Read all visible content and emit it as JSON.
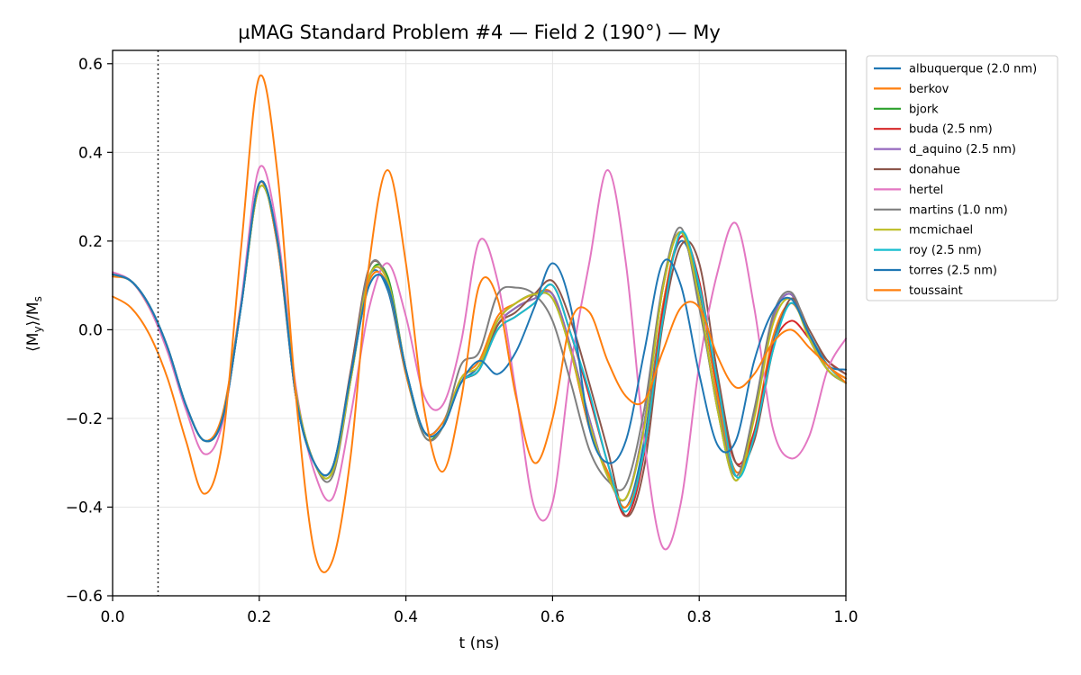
{
  "chart_data": {
    "type": "line",
    "title": "µMAG Standard Problem #4 — Field 2 (190°) — My",
    "xlabel": "t (ns)",
    "ylabel": "⟨M",
    "ylabel_sub": "y",
    "ylabel_tail": "⟩/M",
    "ylabel_sub2": "s",
    "xlim": [
      0.0,
      1.0
    ],
    "ylim": [
      -0.6,
      0.63
    ],
    "xticks": [
      0.0,
      0.2,
      0.4,
      0.6,
      0.8,
      1.0
    ],
    "xtick_labels": [
      "0.0",
      "0.2",
      "0.4",
      "0.6",
      "0.8",
      "1.0"
    ],
    "yticks": [
      -0.6,
      -0.4,
      -0.2,
      0.0,
      0.2,
      0.4,
      0.6
    ],
    "ytick_labels": [
      "−0.6",
      "−0.4",
      "−0.2",
      "0.0",
      "0.2",
      "0.4",
      "0.6"
    ],
    "grid": true,
    "legend_position": "outside-top-right",
    "vline_x": 0.062,
    "x": [
      0.0,
      0.025,
      0.05,
      0.075,
      0.1,
      0.125,
      0.15,
      0.175,
      0.2,
      0.225,
      0.25,
      0.275,
      0.3,
      0.325,
      0.35,
      0.375,
      0.4,
      0.425,
      0.45,
      0.475,
      0.5,
      0.525,
      0.55,
      0.575,
      0.6,
      0.625,
      0.65,
      0.675,
      0.7,
      0.725,
      0.75,
      0.775,
      0.8,
      0.825,
      0.85,
      0.875,
      0.9,
      0.925,
      0.95,
      0.975,
      1.0
    ],
    "series": [
      {
        "name": "albuquerque (2.0 nm)",
        "color": "#1f77b4",
        "values": [
          0.125,
          0.11,
          0.055,
          -0.04,
          -0.17,
          -0.25,
          -0.2,
          0.05,
          0.33,
          0.19,
          -0.15,
          -0.3,
          -0.31,
          -0.1,
          0.12,
          0.09,
          -0.1,
          -0.23,
          -0.21,
          -0.12,
          -0.08,
          0.02,
          0.06,
          0.08,
          0.07,
          -0.05,
          -0.22,
          -0.32,
          -0.4,
          -0.25,
          0.05,
          0.2,
          0.09,
          -0.15,
          -0.32,
          -0.24,
          -0.03,
          0.06,
          -0.01,
          -0.08,
          -0.11
        ]
      },
      {
        "name": "berkov",
        "color": "#ff7f0e",
        "values": [
          0.12,
          0.11,
          0.05,
          -0.045,
          -0.17,
          -0.25,
          -0.19,
          0.06,
          0.33,
          0.19,
          -0.15,
          -0.3,
          -0.31,
          -0.1,
          0.11,
          0.1,
          -0.1,
          -0.23,
          -0.21,
          -0.11,
          -0.07,
          0.03,
          0.06,
          0.08,
          0.08,
          -0.05,
          -0.22,
          -0.32,
          -0.4,
          -0.27,
          0.05,
          0.21,
          0.1,
          -0.15,
          -0.32,
          -0.23,
          -0.02,
          0.06,
          -0.01,
          -0.08,
          -0.11
        ]
      },
      {
        "name": "bjork",
        "color": "#2ca02c",
        "values": [
          0.125,
          0.11,
          0.055,
          -0.04,
          -0.17,
          -0.25,
          -0.2,
          0.05,
          0.32,
          0.2,
          -0.14,
          -0.3,
          -0.32,
          -0.11,
          0.12,
          0.12,
          -0.09,
          -0.24,
          -0.22,
          -0.12,
          -0.09,
          0.01,
          0.05,
          0.07,
          0.08,
          -0.04,
          -0.2,
          -0.33,
          -0.38,
          -0.21,
          0.09,
          0.22,
          0.06,
          -0.18,
          -0.34,
          -0.19,
          0.02,
          0.08,
          -0.02,
          -0.09,
          -0.12
        ]
      },
      {
        "name": "buda (2.5 nm)",
        "color": "#d62728",
        "values": [
          0.125,
          0.11,
          0.055,
          -0.04,
          -0.17,
          -0.25,
          -0.2,
          0.05,
          0.33,
          0.2,
          -0.15,
          -0.3,
          -0.31,
          -0.1,
          0.12,
          0.11,
          -0.09,
          -0.23,
          -0.22,
          -0.12,
          -0.09,
          0.0,
          0.03,
          0.06,
          0.1,
          -0.01,
          -0.15,
          -0.3,
          -0.42,
          -0.28,
          0.04,
          0.21,
          0.11,
          -0.13,
          -0.3,
          -0.23,
          -0.04,
          0.02,
          -0.02,
          -0.07,
          -0.1
        ]
      },
      {
        "name": "d_aquino (2.5 nm)",
        "color": "#9467bd",
        "values": [
          0.125,
          0.11,
          0.055,
          -0.04,
          -0.17,
          -0.25,
          -0.2,
          0.05,
          0.33,
          0.2,
          -0.15,
          -0.3,
          -0.31,
          -0.1,
          0.12,
          0.11,
          -0.09,
          -0.23,
          -0.22,
          -0.12,
          -0.09,
          0.01,
          0.05,
          0.07,
          0.08,
          -0.04,
          -0.2,
          -0.33,
          -0.38,
          -0.21,
          0.09,
          0.22,
          0.06,
          -0.18,
          -0.34,
          -0.19,
          0.02,
          0.08,
          -0.02,
          -0.09,
          -0.12
        ]
      },
      {
        "name": "donahue",
        "color": "#8c564b",
        "values": [
          0.125,
          0.11,
          0.055,
          -0.04,
          -0.17,
          -0.25,
          -0.2,
          0.05,
          0.33,
          0.2,
          -0.15,
          -0.3,
          -0.31,
          -0.09,
          0.14,
          0.11,
          -0.09,
          -0.23,
          -0.22,
          -0.12,
          -0.09,
          0.01,
          0.04,
          0.08,
          0.11,
          0.02,
          -0.12,
          -0.27,
          -0.42,
          -0.31,
          0.01,
          0.19,
          0.15,
          -0.1,
          -0.3,
          -0.25,
          -0.05,
          0.07,
          0.0,
          -0.07,
          -0.1
        ]
      },
      {
        "name": "hertel",
        "color": "#e377c2",
        "values": [
          0.13,
          0.11,
          0.05,
          -0.05,
          -0.18,
          -0.28,
          -0.21,
          0.06,
          0.365,
          0.22,
          -0.13,
          -0.32,
          -0.38,
          -0.19,
          0.05,
          0.15,
          0.03,
          -0.15,
          -0.17,
          -0.03,
          0.2,
          0.11,
          -0.14,
          -0.4,
          -0.39,
          -0.08,
          0.15,
          0.36,
          0.15,
          -0.25,
          -0.49,
          -0.39,
          -0.08,
          0.13,
          0.24,
          0.05,
          -0.22,
          -0.29,
          -0.24,
          -0.09,
          -0.02
        ]
      },
      {
        "name": "martins (1.0 nm)",
        "color": "#7f7f7f",
        "values": [
          0.125,
          0.11,
          0.055,
          -0.04,
          -0.17,
          -0.25,
          -0.2,
          0.05,
          0.32,
          0.2,
          -0.14,
          -0.3,
          -0.33,
          -0.11,
          0.14,
          0.11,
          -0.09,
          -0.24,
          -0.22,
          -0.08,
          -0.05,
          0.08,
          0.095,
          0.08,
          0.02,
          -0.12,
          -0.27,
          -0.34,
          -0.35,
          -0.18,
          0.1,
          0.23,
          0.05,
          -0.17,
          -0.33,
          -0.18,
          0.03,
          0.085,
          -0.01,
          -0.09,
          -0.12
        ]
      },
      {
        "name": "mcmichael",
        "color": "#bcbd22",
        "values": [
          0.125,
          0.11,
          0.055,
          -0.04,
          -0.17,
          -0.25,
          -0.2,
          0.05,
          0.32,
          0.2,
          -0.14,
          -0.3,
          -0.32,
          -0.11,
          0.12,
          0.11,
          -0.09,
          -0.23,
          -0.22,
          -0.11,
          -0.08,
          0.02,
          0.06,
          0.08,
          0.07,
          -0.05,
          -0.21,
          -0.33,
          -0.38,
          -0.22,
          0.09,
          0.22,
          0.07,
          -0.18,
          -0.34,
          -0.2,
          0.01,
          0.07,
          -0.02,
          -0.09,
          -0.12
        ]
      },
      {
        "name": "roy (2.5 nm)",
        "color": "#17becf",
        "values": [
          0.125,
          0.11,
          0.055,
          -0.04,
          -0.17,
          -0.25,
          -0.2,
          0.05,
          0.33,
          0.2,
          -0.15,
          -0.3,
          -0.31,
          -0.1,
          0.1,
          0.1,
          -0.09,
          -0.23,
          -0.22,
          -0.12,
          -0.09,
          0.0,
          0.03,
          0.06,
          0.1,
          -0.01,
          -0.14,
          -0.3,
          -0.41,
          -0.27,
          0.02,
          0.22,
          0.1,
          -0.12,
          -0.33,
          -0.24,
          -0.05,
          0.06,
          -0.01,
          -0.08,
          -0.12
        ]
      },
      {
        "name": "torres (2.5 nm)",
        "color": "#1f77b4",
        "values": [
          0.125,
          0.11,
          0.055,
          -0.04,
          -0.17,
          -0.25,
          -0.2,
          0.05,
          0.33,
          0.2,
          -0.15,
          -0.3,
          -0.31,
          -0.1,
          0.1,
          0.1,
          -0.09,
          -0.23,
          -0.22,
          -0.12,
          -0.07,
          -0.1,
          -0.05,
          0.05,
          0.15,
          0.05,
          -0.22,
          -0.3,
          -0.25,
          -0.05,
          0.15,
          0.1,
          -0.1,
          -0.26,
          -0.25,
          -0.07,
          0.04,
          0.07,
          -0.01,
          -0.08,
          -0.09
        ]
      },
      {
        "name": "toussaint",
        "color": "#ff7f0e",
        "values": [
          0.075,
          0.05,
          -0.01,
          -0.11,
          -0.25,
          -0.37,
          -0.25,
          0.18,
          0.57,
          0.35,
          -0.15,
          -0.5,
          -0.52,
          -0.28,
          0.15,
          0.36,
          0.15,
          -0.18,
          -0.32,
          -0.16,
          0.1,
          0.07,
          -0.15,
          -0.3,
          -0.2,
          0.02,
          0.04,
          -0.07,
          -0.15,
          -0.16,
          -0.05,
          0.05,
          0.05,
          -0.06,
          -0.13,
          -0.1,
          -0.03,
          0.0,
          -0.04,
          -0.08,
          -0.12
        ]
      }
    ]
  }
}
